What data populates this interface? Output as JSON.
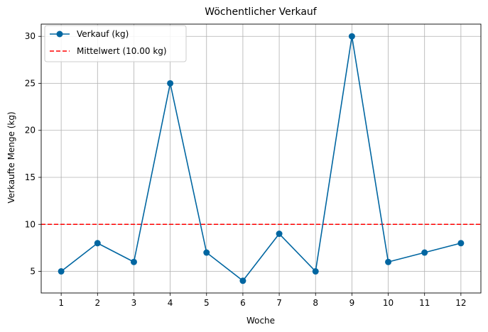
{
  "chart_data": {
    "type": "line",
    "title": "Wöchentlicher Verkauf",
    "xlabel": "Woche",
    "ylabel": "Verkaufte Menge (kg)",
    "x": [
      1,
      2,
      3,
      4,
      5,
      6,
      7,
      8,
      9,
      10,
      11,
      12
    ],
    "xticks": [
      "1",
      "2",
      "3",
      "4",
      "5",
      "6",
      "7",
      "8",
      "9",
      "10",
      "11",
      "12"
    ],
    "yticks": [
      "5",
      "10",
      "15",
      "20",
      "25",
      "30"
    ],
    "ytick_values": [
      5,
      10,
      15,
      20,
      25,
      30
    ],
    "xlim": [
      0.45,
      12.55
    ],
    "ylim": [
      2.7,
      31.3
    ],
    "grid": true,
    "legend_position": "top-left",
    "series": [
      {
        "name": "Verkauf (kg)",
        "values": [
          5,
          8,
          6,
          25,
          7,
          4,
          9,
          5,
          30,
          6,
          7,
          8
        ],
        "color": "#0066a1",
        "marker": "circle",
        "line_style": "solid"
      }
    ],
    "reference_line": {
      "name": "Mittelwert (10.00 kg)",
      "value": 10.0,
      "color": "#ff0000",
      "line_style": "dashed"
    }
  }
}
